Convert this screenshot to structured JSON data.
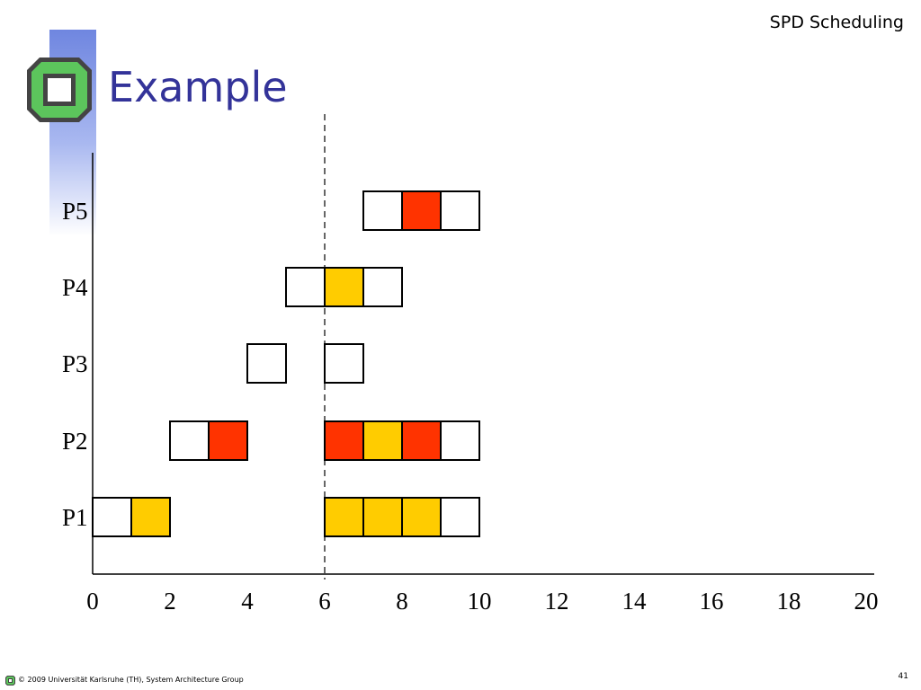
{
  "header": {
    "section_title": "SPD Scheduling"
  },
  "slide": {
    "title": "Example"
  },
  "footer": {
    "copyright": "© 2009 Universität Karlsruhe (TH), System Architecture Group",
    "page_number": "41"
  },
  "colors": {
    "title": "#333399",
    "band": "#6f86e0",
    "logo_green": "#5cc55c",
    "logo_gray": "#444444",
    "red": "#ff3300",
    "yellow": "#ffcc00",
    "empty": "#ffffff"
  },
  "chart_data": {
    "type": "gantt",
    "x_ticks": [
      0,
      2,
      4,
      6,
      8,
      10,
      12,
      14,
      16,
      18,
      20
    ],
    "x_range": [
      0,
      20
    ],
    "marker_line_x": 6,
    "processes": [
      {
        "label": "P5",
        "slots": [
          {
            "start": 7,
            "state": "empty"
          },
          {
            "start": 8,
            "state": "red"
          },
          {
            "start": 9,
            "state": "empty"
          }
        ]
      },
      {
        "label": "P4",
        "slots": [
          {
            "start": 5,
            "state": "empty"
          },
          {
            "start": 6,
            "state": "yellow"
          },
          {
            "start": 7,
            "state": "empty"
          }
        ]
      },
      {
        "label": "P3",
        "slots": [
          {
            "start": 4,
            "state": "empty"
          },
          {
            "start": 6,
            "state": "empty"
          }
        ]
      },
      {
        "label": "P2",
        "slots": [
          {
            "start": 2,
            "state": "empty"
          },
          {
            "start": 3,
            "state": "red"
          },
          {
            "start": 6,
            "state": "red"
          },
          {
            "start": 7,
            "state": "yellow"
          },
          {
            "start": 8,
            "state": "red"
          },
          {
            "start": 9,
            "state": "empty"
          }
        ]
      },
      {
        "label": "P1",
        "slots": [
          {
            "start": 0,
            "state": "empty"
          },
          {
            "start": 1,
            "state": "yellow"
          },
          {
            "start": 6,
            "state": "yellow"
          },
          {
            "start": 7,
            "state": "yellow"
          },
          {
            "start": 8,
            "state": "yellow"
          },
          {
            "start": 9,
            "state": "empty"
          }
        ]
      }
    ]
  }
}
